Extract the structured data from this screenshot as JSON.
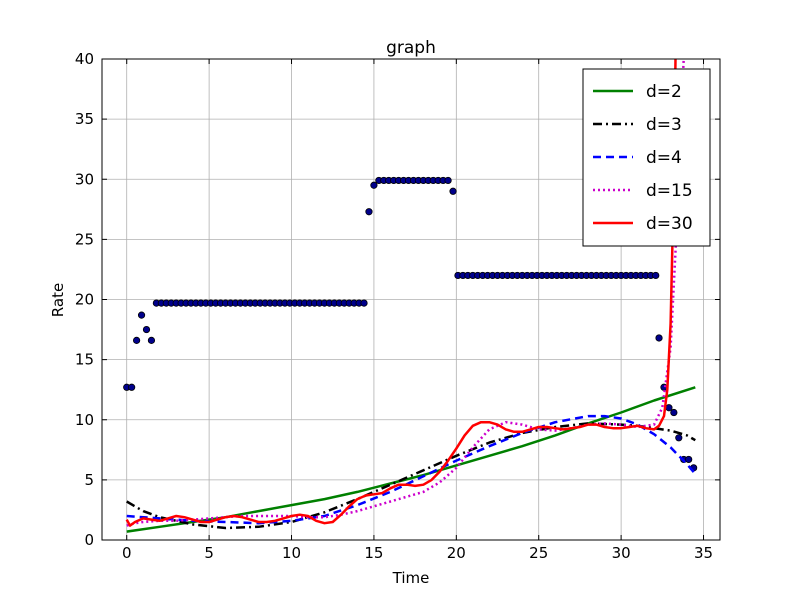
{
  "chart_data": {
    "type": "scatter",
    "title": "graph",
    "xlabel": "Time",
    "ylabel": "Rate",
    "xlim": [
      -1.5,
      36
    ],
    "ylim": [
      0,
      40
    ],
    "xticks": [
      0,
      5,
      10,
      15,
      20,
      25,
      30,
      35
    ],
    "yticks": [
      0,
      5,
      10,
      15,
      20,
      25,
      30,
      35,
      40
    ],
    "grid": true,
    "legend_position": "upper right",
    "points": [
      {
        "x": 0.0,
        "y": 12.7
      },
      {
        "x": 0.3,
        "y": 12.7
      },
      {
        "x": 0.6,
        "y": 16.6
      },
      {
        "x": 0.9,
        "y": 18.7
      },
      {
        "x": 1.2,
        "y": 17.5
      },
      {
        "x": 1.5,
        "y": 16.6
      },
      {
        "x": 1.8,
        "y": 19.7
      },
      {
        "x": 2.1,
        "y": 19.7
      },
      {
        "x": 2.4,
        "y": 19.7
      },
      {
        "x": 2.7,
        "y": 19.7
      },
      {
        "x": 3.0,
        "y": 19.7
      },
      {
        "x": 3.3,
        "y": 19.7
      },
      {
        "x": 3.6,
        "y": 19.7
      },
      {
        "x": 3.9,
        "y": 19.7
      },
      {
        "x": 4.2,
        "y": 19.7
      },
      {
        "x": 4.5,
        "y": 19.7
      },
      {
        "x": 4.8,
        "y": 19.7
      },
      {
        "x": 5.1,
        "y": 19.7
      },
      {
        "x": 5.4,
        "y": 19.7
      },
      {
        "x": 5.7,
        "y": 19.7
      },
      {
        "x": 6.0,
        "y": 19.7
      },
      {
        "x": 6.3,
        "y": 19.7
      },
      {
        "x": 6.6,
        "y": 19.7
      },
      {
        "x": 6.9,
        "y": 19.7
      },
      {
        "x": 7.2,
        "y": 19.7
      },
      {
        "x": 7.5,
        "y": 19.7
      },
      {
        "x": 7.8,
        "y": 19.7
      },
      {
        "x": 8.1,
        "y": 19.7
      },
      {
        "x": 8.4,
        "y": 19.7
      },
      {
        "x": 8.7,
        "y": 19.7
      },
      {
        "x": 9.0,
        "y": 19.7
      },
      {
        "x": 9.3,
        "y": 19.7
      },
      {
        "x": 9.6,
        "y": 19.7
      },
      {
        "x": 9.9,
        "y": 19.7
      },
      {
        "x": 10.2,
        "y": 19.7
      },
      {
        "x": 10.5,
        "y": 19.7
      },
      {
        "x": 10.8,
        "y": 19.7
      },
      {
        "x": 11.1,
        "y": 19.7
      },
      {
        "x": 11.4,
        "y": 19.7
      },
      {
        "x": 11.7,
        "y": 19.7
      },
      {
        "x": 12.0,
        "y": 19.7
      },
      {
        "x": 12.3,
        "y": 19.7
      },
      {
        "x": 12.6,
        "y": 19.7
      },
      {
        "x": 12.9,
        "y": 19.7
      },
      {
        "x": 13.2,
        "y": 19.7
      },
      {
        "x": 13.5,
        "y": 19.7
      },
      {
        "x": 13.8,
        "y": 19.7
      },
      {
        "x": 14.1,
        "y": 19.7
      },
      {
        "x": 14.4,
        "y": 19.7
      },
      {
        "x": 14.7,
        "y": 27.3
      },
      {
        "x": 15.0,
        "y": 29.5
      },
      {
        "x": 15.3,
        "y": 29.9
      },
      {
        "x": 15.6,
        "y": 29.9
      },
      {
        "x": 15.9,
        "y": 29.9
      },
      {
        "x": 16.2,
        "y": 29.9
      },
      {
        "x": 16.5,
        "y": 29.9
      },
      {
        "x": 16.8,
        "y": 29.9
      },
      {
        "x": 17.1,
        "y": 29.9
      },
      {
        "x": 17.4,
        "y": 29.9
      },
      {
        "x": 17.7,
        "y": 29.9
      },
      {
        "x": 18.0,
        "y": 29.9
      },
      {
        "x": 18.3,
        "y": 29.9
      },
      {
        "x": 18.6,
        "y": 29.9
      },
      {
        "x": 18.9,
        "y": 29.9
      },
      {
        "x": 19.2,
        "y": 29.9
      },
      {
        "x": 19.5,
        "y": 29.9
      },
      {
        "x": 19.8,
        "y": 29.0
      },
      {
        "x": 20.1,
        "y": 22.0
      },
      {
        "x": 20.4,
        "y": 22.0
      },
      {
        "x": 20.7,
        "y": 22.0
      },
      {
        "x": 21.0,
        "y": 22.0
      },
      {
        "x": 21.3,
        "y": 22.0
      },
      {
        "x": 21.6,
        "y": 22.0
      },
      {
        "x": 21.9,
        "y": 22.0
      },
      {
        "x": 22.2,
        "y": 22.0
      },
      {
        "x": 22.5,
        "y": 22.0
      },
      {
        "x": 22.8,
        "y": 22.0
      },
      {
        "x": 23.1,
        "y": 22.0
      },
      {
        "x": 23.4,
        "y": 22.0
      },
      {
        "x": 23.7,
        "y": 22.0
      },
      {
        "x": 24.0,
        "y": 22.0
      },
      {
        "x": 24.3,
        "y": 22.0
      },
      {
        "x": 24.6,
        "y": 22.0
      },
      {
        "x": 24.9,
        "y": 22.0
      },
      {
        "x": 25.2,
        "y": 22.0
      },
      {
        "x": 25.5,
        "y": 22.0
      },
      {
        "x": 25.8,
        "y": 22.0
      },
      {
        "x": 26.1,
        "y": 22.0
      },
      {
        "x": 26.4,
        "y": 22.0
      },
      {
        "x": 26.7,
        "y": 22.0
      },
      {
        "x": 27.0,
        "y": 22.0
      },
      {
        "x": 27.3,
        "y": 22.0
      },
      {
        "x": 27.6,
        "y": 22.0
      },
      {
        "x": 27.9,
        "y": 22.0
      },
      {
        "x": 28.2,
        "y": 22.0
      },
      {
        "x": 28.5,
        "y": 22.0
      },
      {
        "x": 28.8,
        "y": 22.0
      },
      {
        "x": 29.1,
        "y": 22.0
      },
      {
        "x": 29.4,
        "y": 22.0
      },
      {
        "x": 29.7,
        "y": 22.0
      },
      {
        "x": 30.0,
        "y": 22.0
      },
      {
        "x": 30.3,
        "y": 22.0
      },
      {
        "x": 30.6,
        "y": 22.0
      },
      {
        "x": 30.9,
        "y": 22.0
      },
      {
        "x": 31.2,
        "y": 22.0
      },
      {
        "x": 31.5,
        "y": 22.0
      },
      {
        "x": 31.8,
        "y": 22.0
      },
      {
        "x": 32.1,
        "y": 22.0
      },
      {
        "x": 32.3,
        "y": 16.8
      },
      {
        "x": 32.6,
        "y": 12.7
      },
      {
        "x": 32.9,
        "y": 11.0
      },
      {
        "x": 33.2,
        "y": 10.6
      },
      {
        "x": 33.5,
        "y": 8.5
      },
      {
        "x": 33.8,
        "y": 6.7
      },
      {
        "x": 34.1,
        "y": 6.7
      },
      {
        "x": 34.4,
        "y": 6.0
      }
    ],
    "series": [
      {
        "name": "d=2",
        "color": "#008000",
        "style": "solid",
        "x": [
          0,
          2,
          4,
          6,
          8,
          10,
          12,
          14,
          16,
          18,
          20,
          22,
          24,
          26,
          28,
          30,
          32,
          34.5
        ],
        "y": [
          0.7,
          1.1,
          1.5,
          1.9,
          2.4,
          2.9,
          3.4,
          4.0,
          4.7,
          5.4,
          6.2,
          7.0,
          7.8,
          8.7,
          9.7,
          10.6,
          11.6,
          12.7
        ]
      },
      {
        "name": "d=3",
        "color": "#000000",
        "style": "dashdot",
        "x": [
          0,
          1,
          2,
          4,
          6,
          8,
          10,
          12,
          14,
          16,
          18,
          20,
          22,
          24,
          26,
          28,
          30,
          31,
          32,
          33,
          34,
          34.5
        ],
        "y": [
          3.2,
          2.4,
          1.9,
          1.3,
          1.0,
          1.1,
          1.5,
          2.3,
          3.4,
          4.6,
          5.8,
          7.0,
          8.1,
          8.9,
          9.4,
          9.7,
          9.6,
          9.5,
          9.3,
          9.1,
          8.7,
          8.3
        ]
      },
      {
        "name": "d=4",
        "color": "#0000ff",
        "style": "dashed",
        "x": [
          0,
          2,
          4,
          6,
          8,
          10,
          12,
          14,
          16,
          18,
          20,
          22,
          24,
          26,
          28,
          29,
          30,
          31,
          32,
          33,
          34,
          34.5
        ],
        "y": [
          2.0,
          1.8,
          1.6,
          1.5,
          1.4,
          1.6,
          2.0,
          2.9,
          4.0,
          5.3,
          6.6,
          7.8,
          8.9,
          9.8,
          10.3,
          10.3,
          10.1,
          9.6,
          8.8,
          7.7,
          6.3,
          5.5
        ]
      },
      {
        "name": "d=15",
        "color": "#cc00cc",
        "style": "dotted",
        "x": [
          0,
          0.5,
          1,
          2,
          3,
          4,
          5,
          6,
          7,
          8,
          9,
          10,
          11,
          12,
          13,
          14,
          15,
          16,
          17,
          18,
          19,
          20,
          21,
          22,
          23,
          24,
          25,
          26,
          27,
          28,
          29,
          30,
          31,
          32,
          32.5,
          33,
          33.3,
          33.6,
          33.8
        ],
        "y": [
          1.2,
          1.4,
          1.5,
          1.6,
          1.6,
          1.7,
          1.8,
          1.9,
          2.0,
          2.0,
          2.0,
          2.0,
          1.9,
          1.9,
          2.1,
          2.4,
          2.8,
          3.2,
          3.6,
          4.0,
          4.8,
          6.0,
          7.7,
          9.2,
          9.8,
          9.6,
          9.2,
          9.1,
          9.3,
          9.6,
          9.7,
          9.6,
          9.4,
          9.6,
          11.0,
          16.0,
          24.0,
          34.0,
          40.0
        ]
      },
      {
        "name": "d=30",
        "color": "#ff0000",
        "style": "solid",
        "x": [
          0,
          0.2,
          0.5,
          1,
          1.5,
          2,
          2.5,
          3,
          3.5,
          4,
          4.5,
          5,
          5.5,
          6,
          6.5,
          7,
          7.5,
          8,
          8.5,
          9,
          9.5,
          10,
          10.5,
          11,
          11.5,
          12,
          12.5,
          13,
          13.5,
          14,
          14.5,
          15,
          15.5,
          16,
          16.5,
          17,
          17.5,
          18,
          18.5,
          19,
          19.5,
          20,
          20.5,
          21,
          21.5,
          22,
          22.5,
          23,
          23.5,
          24,
          24.5,
          25,
          25.5,
          26,
          26.5,
          27,
          27.5,
          28,
          28.5,
          29,
          29.5,
          30,
          30.5,
          31,
          31.5,
          32,
          32.3,
          32.6,
          32.8,
          33.0,
          33.2,
          33.3
        ],
        "y": [
          1.7,
          1.2,
          1.5,
          1.8,
          1.7,
          1.6,
          1.8,
          2.0,
          1.9,
          1.7,
          1.5,
          1.5,
          1.7,
          1.9,
          2.0,
          1.9,
          1.7,
          1.5,
          1.5,
          1.6,
          1.8,
          2.0,
          2.1,
          2.0,
          1.6,
          1.4,
          1.5,
          2.1,
          2.8,
          3.4,
          3.7,
          3.8,
          3.9,
          4.3,
          4.6,
          4.6,
          4.5,
          4.6,
          5.0,
          5.7,
          6.6,
          7.6,
          8.7,
          9.5,
          9.8,
          9.8,
          9.6,
          9.2,
          9.0,
          9.0,
          9.2,
          9.4,
          9.4,
          9.3,
          9.2,
          9.3,
          9.4,
          9.6,
          9.6,
          9.4,
          9.3,
          9.3,
          9.4,
          9.5,
          9.3,
          9.2,
          9.5,
          10.3,
          12.5,
          18.0,
          30.0,
          40.0
        ]
      }
    ]
  }
}
